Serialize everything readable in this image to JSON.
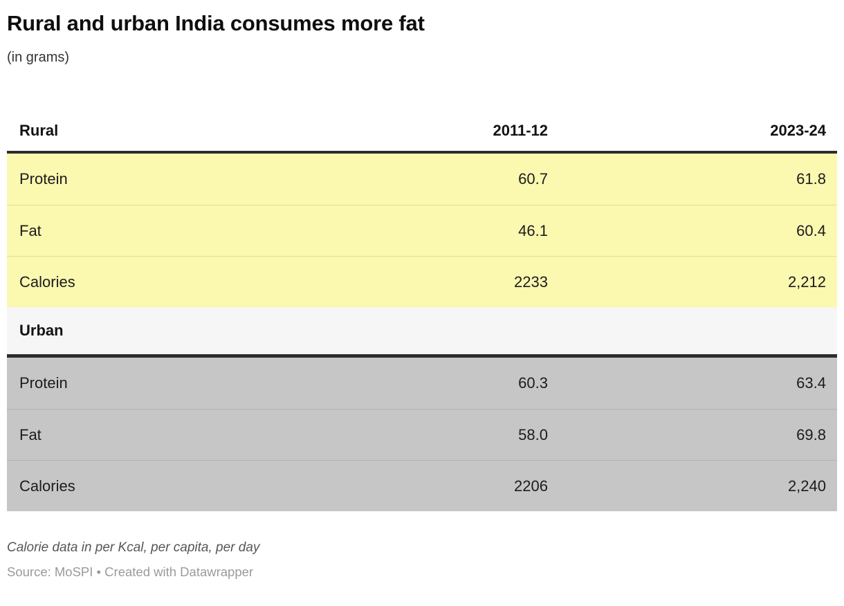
{
  "header": {
    "title": "Rural and urban India consumes more fat",
    "subtitle": "(in grams)"
  },
  "table": {
    "columns": {
      "col1": "Rural",
      "col2": "2011-12",
      "col3": "2023-24"
    },
    "rural_rows": [
      {
        "label": "Protein",
        "v2011": "60.7",
        "v2023": "61.8"
      },
      {
        "label": "Fat",
        "v2011": "46.1",
        "v2023": "60.4"
      },
      {
        "label": "Calories",
        "v2011": "2233",
        "v2023": "2,212"
      }
    ],
    "urban_section_label": "Urban",
    "urban_rows": [
      {
        "label": "Protein",
        "v2011": "60.3",
        "v2023": "63.4"
      },
      {
        "label": "Fat",
        "v2011": "58.0",
        "v2023": "69.8"
      },
      {
        "label": "Calories",
        "v2011": "2206",
        "v2023": "2,240"
      }
    ]
  },
  "footer": {
    "note": "Calorie data in per Kcal, per capita, per day",
    "source": "Source: MoSPI • Created with Datawrapper"
  },
  "colors": {
    "rural_row_bg": "#fbf8b0",
    "urban_row_bg": "#c6c6c6",
    "urban_header_bg": "#f6f6f6",
    "dark_border": "#2d2d2d",
    "note_text": "#565656",
    "source_text": "#9a9a9a"
  },
  "chart_data": {
    "type": "table",
    "title": "Rural and urban India consumes more fat",
    "subtitle": "(in grams)",
    "columns": [
      "",
      "2011-12",
      "2023-24"
    ],
    "sections": [
      {
        "section": "Rural",
        "rows": [
          [
            "Protein",
            60.7,
            61.8
          ],
          [
            "Fat",
            46.1,
            60.4
          ],
          [
            "Calories",
            2233,
            2212
          ]
        ]
      },
      {
        "section": "Urban",
        "rows": [
          [
            "Protein",
            60.3,
            63.4
          ],
          [
            "Fat",
            58.0,
            69.8
          ],
          [
            "Calories",
            2206,
            2240
          ]
        ]
      }
    ],
    "note": "Calorie data in per Kcal, per capita, per day",
    "source": "MoSPI"
  }
}
